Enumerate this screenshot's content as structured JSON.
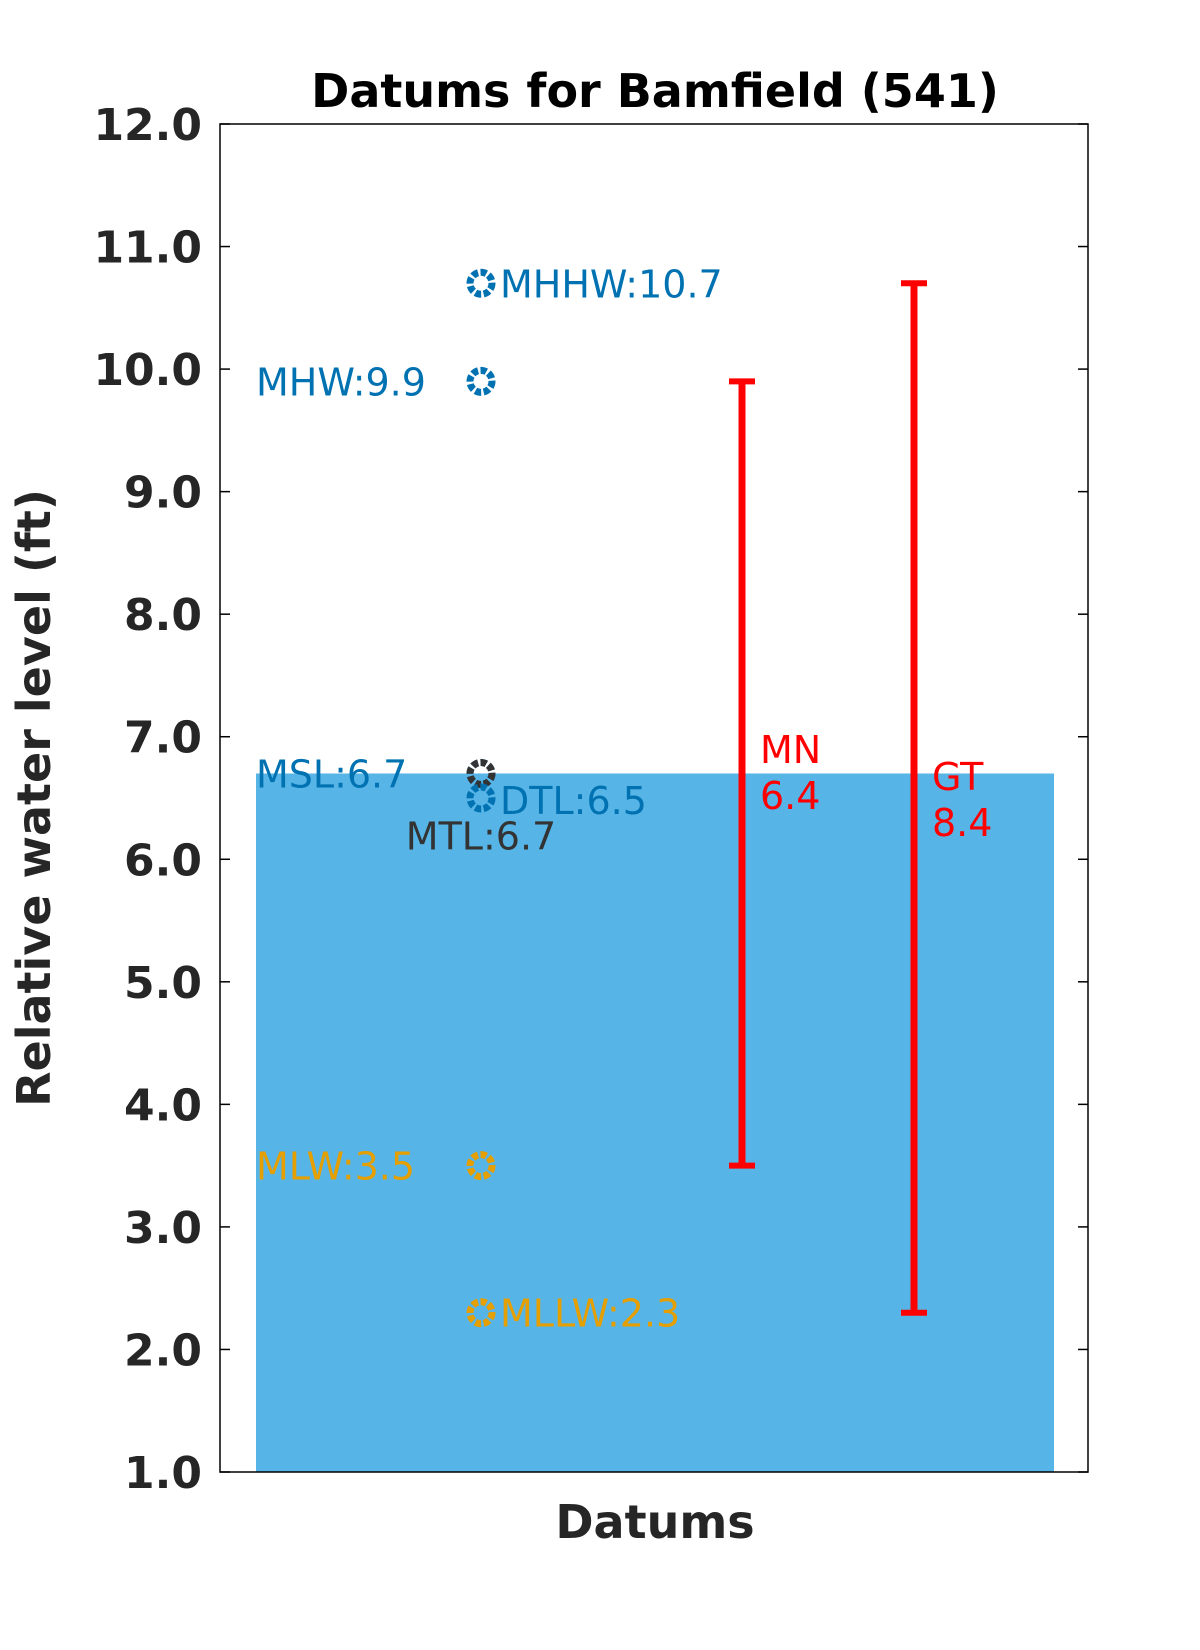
{
  "chart_data": {
    "type": "scatter",
    "title": "Datums for Bamfield (541)",
    "xlabel": "Datums",
    "ylabel": "Relative water level (ft)",
    "ylim": [
      1.0,
      12.0
    ],
    "yticks": [
      "1.0",
      "2.0",
      "3.0",
      "4.0",
      "5.0",
      "6.0",
      "7.0",
      "8.0",
      "9.0",
      "10.0",
      "11.0",
      "12.0"
    ],
    "grid": false,
    "background_bar": {
      "value": 6.7,
      "color": "#56b4e6"
    },
    "datums": [
      {
        "name": "MHHW",
        "value": 10.7,
        "label": "MHHW:10.7",
        "color": "#0072b2",
        "label_side": "right"
      },
      {
        "name": "MHW",
        "value": 9.9,
        "label": "MHW:9.9",
        "color": "#0072b2",
        "label_side": "left"
      },
      {
        "name": "MSL",
        "value": 6.7,
        "label": "MSL:6.7",
        "color": "#0072b2",
        "label_side": "left"
      },
      {
        "name": "MTL",
        "value": 6.7,
        "label": "MTL:6.7",
        "color": "#333333",
        "label_side": "below"
      },
      {
        "name": "DTL",
        "value": 6.5,
        "label": "DTL:6.5",
        "color": "#0072b2",
        "label_side": "right"
      },
      {
        "name": "MLW",
        "value": 3.5,
        "label": "MLW:3.5",
        "color": "#e69f00",
        "label_side": "left"
      },
      {
        "name": "MLLW",
        "value": 2.3,
        "label": "MLLW:2.3",
        "color": "#e69f00",
        "label_side": "right"
      }
    ],
    "ranges": [
      {
        "name": "MN",
        "value": "6.4",
        "from": 3.5,
        "to": 9.9,
        "color": "#ff0000"
      },
      {
        "name": "GT",
        "value": "8.4",
        "from": 2.3,
        "to": 10.7,
        "color": "#ff0000"
      }
    ]
  }
}
